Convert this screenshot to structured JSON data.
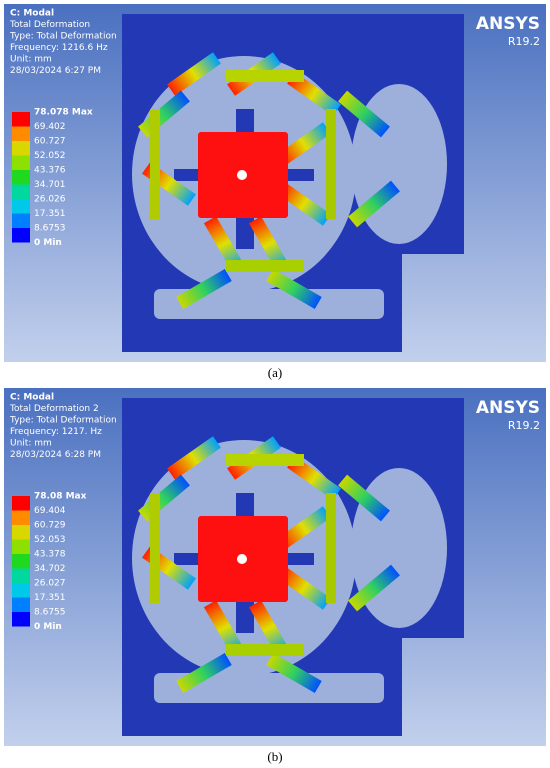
{
  "figure": {
    "panels": [
      {
        "header": [
          "C: Modal",
          "Total Deformation",
          "Type: Total Deformation",
          "Frequency: 1216.6 Hz",
          "Unit: mm",
          "28/03/2024 6:27 PM"
        ],
        "legend": [
          "78.078 Max",
          "69.402",
          "60.727",
          "52.052",
          "43.376",
          "34.701",
          "26.026",
          "17.351",
          "8.6753",
          "0 Min"
        ],
        "logo": "ANSYS",
        "version": "R19.2",
        "caption": "(a)"
      },
      {
        "header": [
          "C: Modal",
          "Total Deformation 2",
          "Type: Total Deformation",
          "Frequency: 1217. Hz",
          "Unit: mm",
          "28/03/2024 6:28 PM"
        ],
        "legend": [
          "78.08 Max",
          "69.404",
          "60.729",
          "52.053",
          "43.378",
          "34.702",
          "26.027",
          "17.351",
          "8.6755",
          "0 Min"
        ],
        "logo": "ANSYS",
        "version": "R19.2",
        "caption": "(b)"
      }
    ]
  }
}
